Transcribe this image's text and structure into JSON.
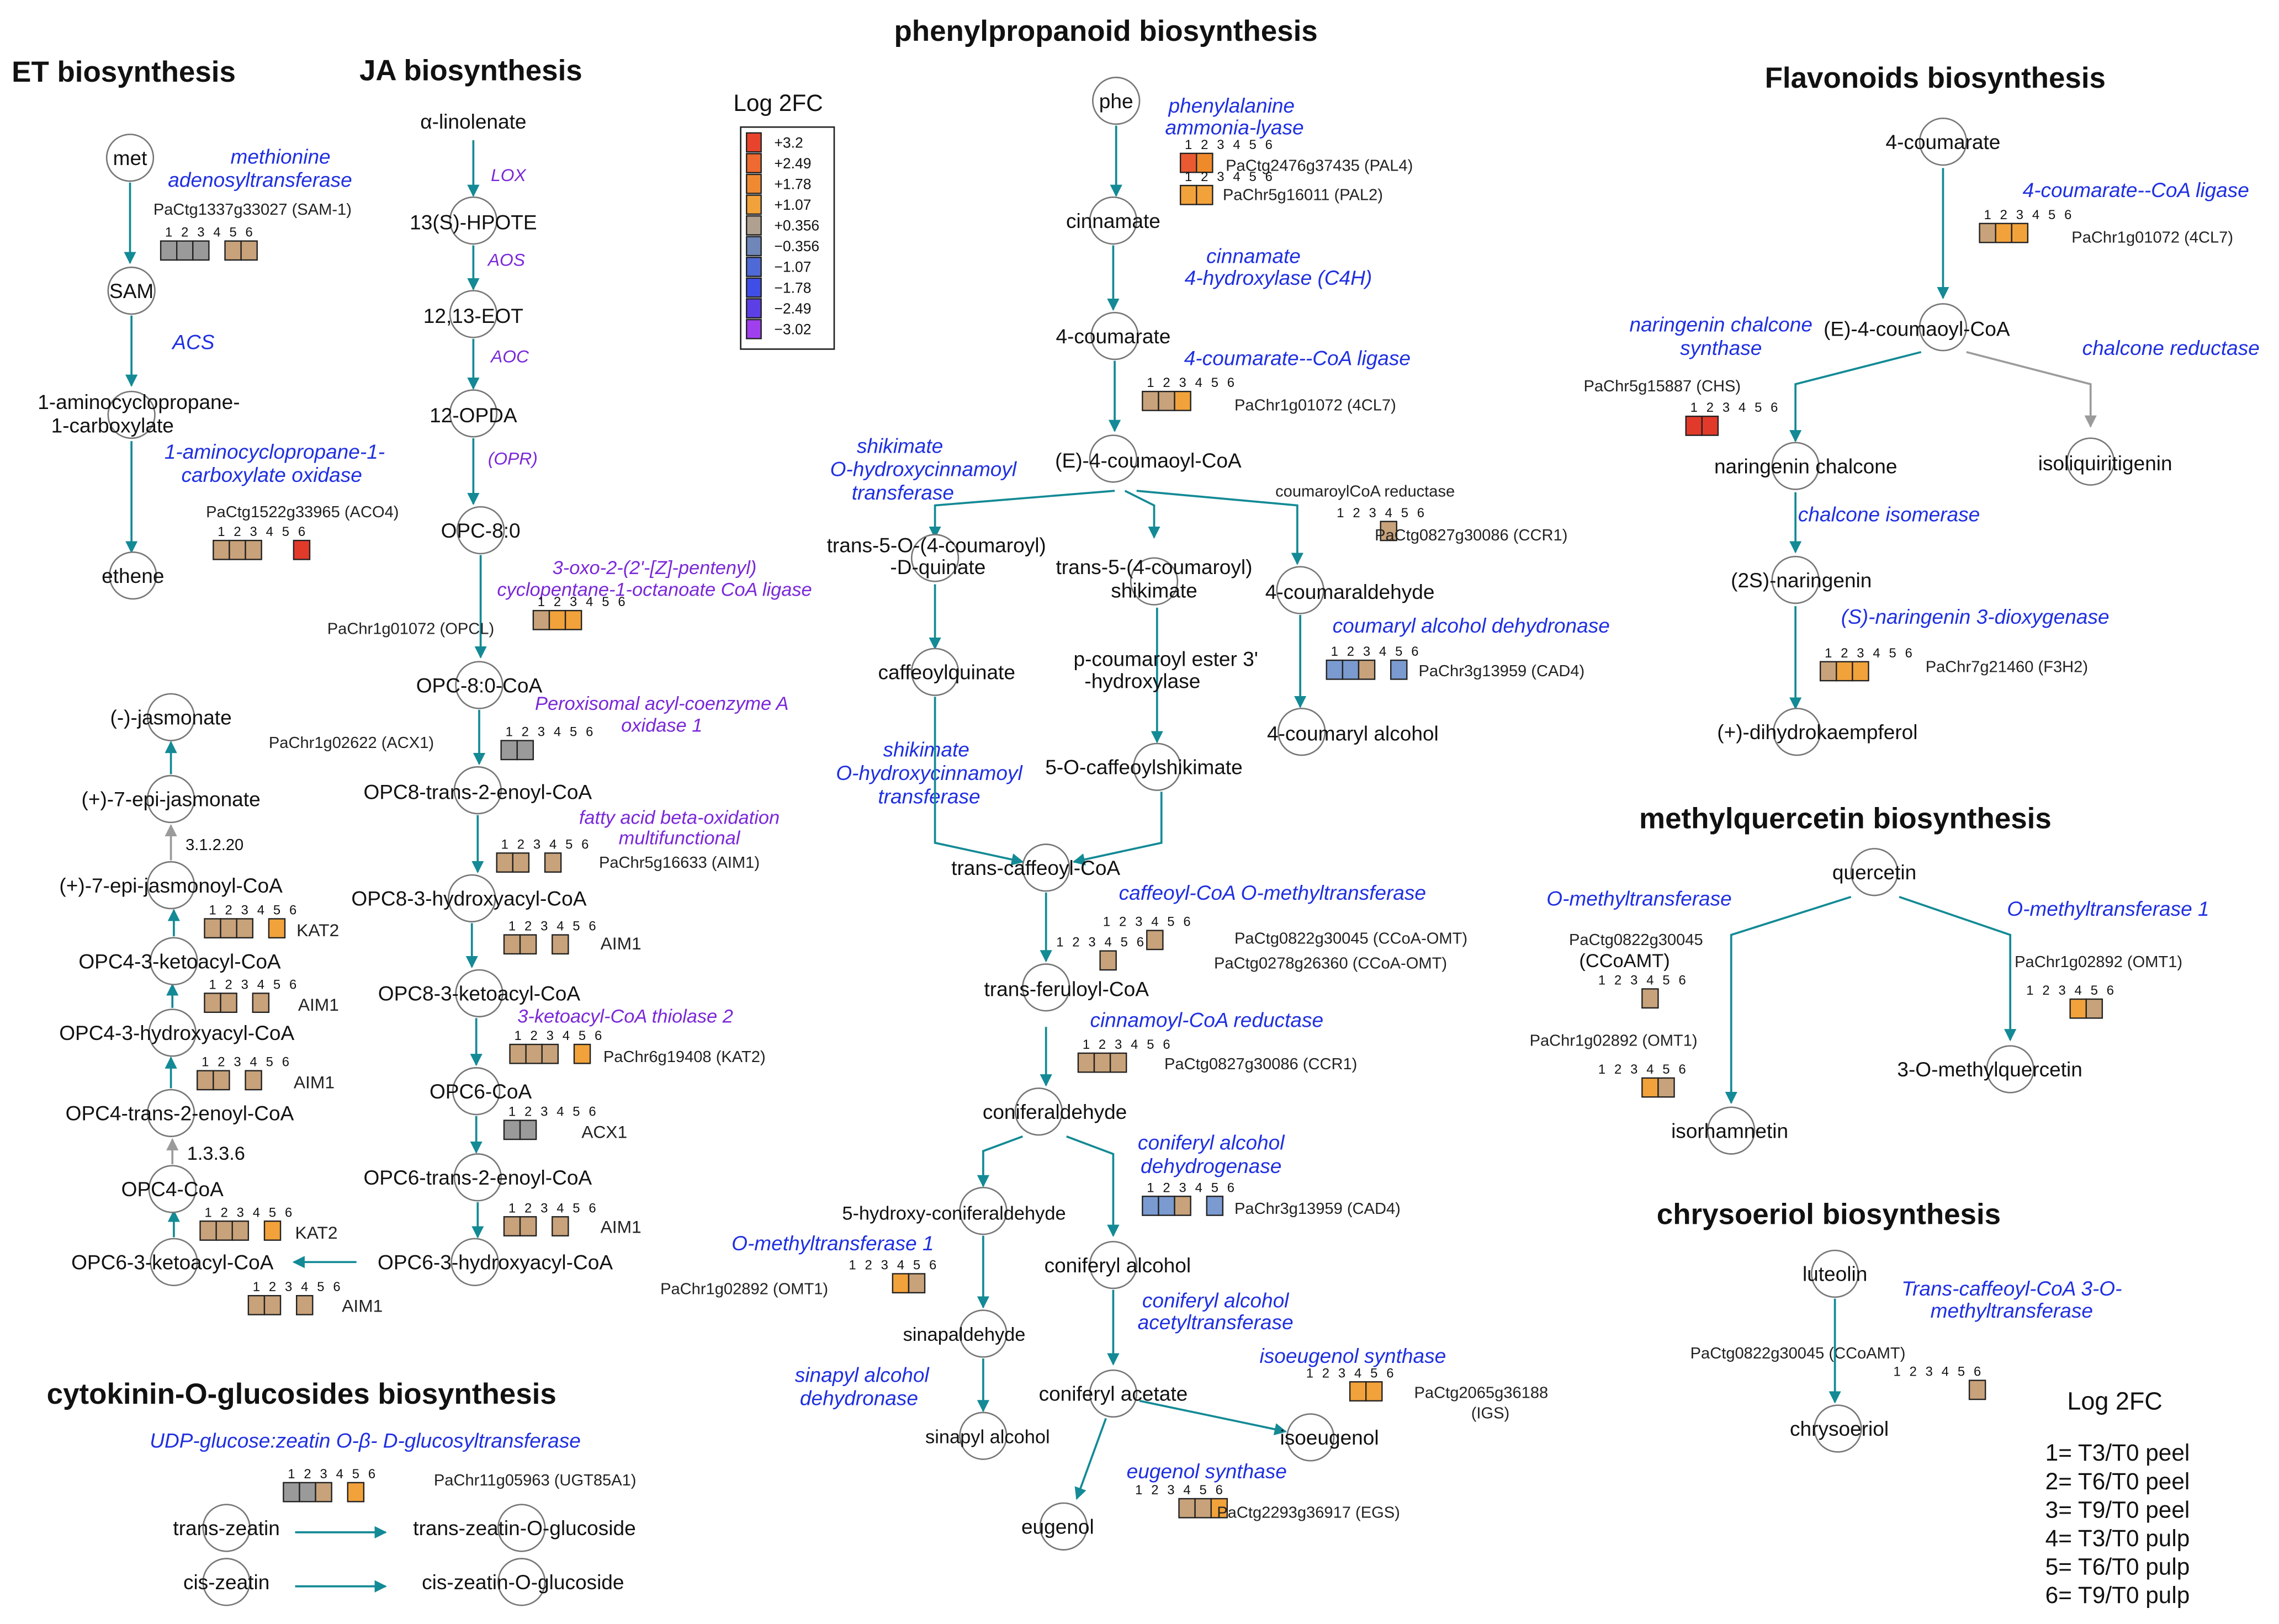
{
  "colors": {
    "arrow_teal": "#138a95",
    "arrow_gray": "#9b9b9b",
    "enzyme_blue": "#1f2fe0",
    "enzyme_purple": "#7a28d8",
    "tan": "#c8a27a",
    "gray": "#9a9a9a",
    "orange": "#f2a23a",
    "orange_dark": "#ef8a2b",
    "red_orange": "#ea5a32",
    "red": "#e23a2a",
    "blue": "#7a9ad0"
  },
  "sections": {
    "et": "ET biosynthesis",
    "ja": "JA biosynthesis",
    "phenyl": "phenylpropanoid biosynthesis",
    "flav": "Flavonoids biosynthesis",
    "mq": "methylquercetin biosynthesis",
    "chry": "chrysoeriol biosynthesis",
    "cyto": "cytokinin-O-glucosides biosynthesis"
  },
  "legend": {
    "title": "Log 2FC",
    "scale_values": [
      "+3.2",
      "+2.49",
      "+1.78",
      "+1.07",
      "+0.356",
      "−0.356",
      "−1.07",
      "−1.78",
      "−2.49",
      "−3.02"
    ],
    "scale_colors": [
      "#e8432c",
      "#ee6a30",
      "#f08a32",
      "#f2a23a",
      "#b0a090",
      "#6f86b8",
      "#4f6ad6",
      "#3f4ee6",
      "#5d3fe6",
      "#a03fee"
    ],
    "key_title": "Log 2FC",
    "key": [
      "1= T3/T0 peel",
      "2= T6/T0 peel",
      "3= T9/T0 peel",
      "4= T3/T0 pulp",
      "5= T6/T0 pulp",
      "6= T9/T0 pulp"
    ]
  },
  "numbers": {
    "n1": "1",
    "n2": "2",
    "n3": "3",
    "n4": "4",
    "n5": "5",
    "n6": "6"
  },
  "et": {
    "met": "met",
    "enz1_a": "methionine",
    "enz1_b": "adenosyltransferase",
    "gene1": "PaCtg1337g33027 (SAM-1)",
    "sam": "SAM",
    "acs": "ACS",
    "acc_a": "1-aminocyclopropane-",
    "acc_b": "1-carboxylate",
    "enz2_a": "1-aminocyclopropane-1-",
    "enz2_b": "carboxylate oxidase",
    "gene2": "PaCtg1522g33965 (ACO4)",
    "ethene": "ethene"
  },
  "ja": {
    "linolenate": "α-linolenate",
    "lox": "LOX",
    "hpote": "13(S)-HPOTE",
    "aos": "AOS",
    "eot": "12,13-EOT",
    "aoc": "AOC",
    "opda": "12-OPDA",
    "opr": "(OPR)",
    "opc80": "OPC-8:0",
    "enz_opcl_a": "3-oxo-2-(2'-[Z]-pentenyl)",
    "enz_opcl_b": "cyclopentane-1-octanoate CoA ligase",
    "gene_opcl": "PaChr1g01072 (OPCL)",
    "opc80coa": "OPC-8:0-CoA",
    "enz_acx_a": "Peroxisomal acyl-coenzyme A",
    "enz_acx_b": "oxidase 1",
    "gene_acx": "PaChr1g02622 (ACX1)",
    "opc8trans": "OPC8-trans-2-enoyl-CoA",
    "enz_aim_a": "fatty acid beta-oxidation",
    "enz_aim_b": "multifunctional",
    "gene_aim": "PaChr5g16633 (AIM1)",
    "opc8hydroxy": "OPC8-3-hydroxyacyl-CoA",
    "aim1": "AIM1",
    "opc8keto": "OPC8-3-ketoacyl-CoA",
    "enz_kat": "3-ketoacyl-CoA thiolase 2",
    "gene_kat": "PaChr6g19408 (KAT2)",
    "opc6coa": "OPC6-CoA",
    "acx1": "ACX1",
    "opc6trans": "OPC6-trans-2-enoyl-CoA",
    "opc6hydroxy": "OPC6-3-hydroxyacyl-CoA",
    "opc6keto": "OPC6-3-ketoacyl-CoA",
    "opc4coa": "OPC4-CoA",
    "ec1336": "1.3.3.6",
    "opc4trans": "OPC4-trans-2-enoyl-CoA",
    "opc4hydroxy": "OPC4-3-hydroxyacyl-CoA",
    "opc4keto": "OPC4-3-ketoacyl-CoA",
    "kat2": "KAT2",
    "epijasmonoyl": "(+)-7-epi-jasmonoyl-CoA",
    "ec3120": "3.1.2.20",
    "epijasmonate": "(+)-7-epi-jasmonate",
    "jasmonate": "(-)-jasmonate"
  },
  "phenyl": {
    "phe": "phe",
    "pal_a": "phenylalanine",
    "pal_b": "ammonia-lyase",
    "gene_pal4": "PaCtg2476g37435 (PAL4)",
    "gene_pal2": "PaChr5g16011 (PAL2)",
    "cinnamate": "cinnamate",
    "c4h_a": "cinnamate",
    "c4h_b": "4-hydroxylase (C4H)",
    "coumarate": "4-coumarate",
    "cl4": "4-coumarate--CoA ligase",
    "gene_4cl": "PaChr1g01072 (4CL7)",
    "coumaoylcoa": "(E)-4-coumaoyl-CoA",
    "shik_a": "shikimate",
    "shik_b": "O-hydroxycinnamoyl",
    "shik_c": "transferase",
    "ccr_label": "coumaroylCoA reductase",
    "gene_ccr1": "PaCtg0827g30086 (CCR1)",
    "quinate_a": "trans-5-O-(4-coumaroyl)",
    "quinate_b": "-D-quinate",
    "shikimate_a": "trans-5-(4-coumaroyl)",
    "shikimate_b": "shikimate",
    "coumaraldehyde": "4-coumaraldehyde",
    "cad_enz": "coumaryl alcohol dehydronase",
    "gene_cad4": "PaChr3g13959 (CAD4)",
    "caffeoylquinate": "caffeoylquinate",
    "pcoum_a": "p-coumaroyl ester 3'",
    "pcoum_b": "-hydroxylase",
    "coumarylalc": "4-coumaryl alcohol",
    "shik2_a": "shikimate",
    "shik2_b": "O-hydroxycinnamoyl",
    "shik2_c": "transferase",
    "caffeoylshik": "5-O-caffeoylshikimate",
    "transcaffeoyl": "trans-caffeoyl-CoA",
    "ccoaomt_enz": "caffeoyl-CoA O-methyltransferase",
    "gene_ccoaomt1": "PaCtg0822g30045 (CCoA-OMT)",
    "gene_ccoaomt2": "PaCtg0278g26360 (CCoA-OMT)",
    "transferuloyl": "trans-feruloyl-CoA",
    "ccr_enz": "cinnamoyl-CoA reductase",
    "gene_ccr1b": "PaCtg0827g30086 (CCR1)",
    "coniferaldehyde": "coniferaldehyde",
    "cad2_a": "coniferyl alcohol",
    "cad2_b": "dehydrogenase",
    "gene_cad4b": "PaChr3g13959 (CAD4)",
    "hydroxyconif": "5-hydroxy-coniferaldehyde",
    "omt_enz": "O-methyltransferase 1",
    "gene_omt1": "PaChr1g02892 (OMT1)",
    "coniferylalc": "coniferyl alcohol",
    "cfat_a": "coniferyl alcohol",
    "cfat_b": "acetyltransferase",
    "sinapaldehyde": "sinapaldehyde",
    "sad_a": "sinapyl alcohol",
    "sad_b": "dehydronase",
    "coniferylacetate": "coniferyl acetate",
    "igs_enz": "isoeugenol synthase",
    "gene_igs_a": "PaCtg2065g36188",
    "gene_igs_b": "(IGS)",
    "sinapylalc": "sinapyl alcohol",
    "isoeugenol": "isoeugenol",
    "egs_enz": "eugenol synthase",
    "gene_egs": "PaCtg2293g36917 (EGS)",
    "eugenol": "eugenol"
  },
  "flav": {
    "coumarate": "4-coumarate",
    "cl4": "4-coumarate--CoA ligase",
    "gene_4cl": "PaChr1g01072 (4CL7)",
    "chs_a": "naringenin chalcone",
    "chs_b": "synthase",
    "coumaoylcoa": "(E)-4-coumaoyl-CoA",
    "chr": "chalcone reductase",
    "gene_chs": "PaChr5g15887 (CHS)",
    "narchalcone": "naringenin chalcone",
    "isoliq": "isoliquiritigenin",
    "chi": "chalcone isomerase",
    "naringenin": "(2S)-naringenin",
    "f3h": "(S)-naringenin 3-dioxygenase",
    "gene_f3h": "PaChr7g21460 (F3H2)",
    "dihydro": "(+)-dihydrokaempferol"
  },
  "mq": {
    "quercetin": "quercetin",
    "omt_left": "O-methyltransferase",
    "omt_right": "O-methyltransferase 1",
    "gene_ccoamt_a": "PaCtg0822g30045",
    "gene_ccoamt_b": "(CCoAMT)",
    "gene_omt1_r": "PaChr1g02892 (OMT1)",
    "gene_omt1_l": "PaChr1g02892 (OMT1)",
    "methylq": "3-O-methylquercetin",
    "isorham": "isorhamnetin"
  },
  "chry": {
    "luteolin": "luteolin",
    "enz_a": "Trans-caffeoyl-CoA 3-O-",
    "enz_b": "methyltransferase",
    "gene": "PaCtg0822g30045 (CCoAMT)",
    "chrysoeriol": "chrysoeriol"
  },
  "cyto": {
    "ugt": "UDP-glucose:zeatin O-β- D-glucosyltransferase",
    "gene": "PaChr11g05963 (UGT85A1)",
    "transzeatin": "trans-zeatin",
    "transzeatinglu": "trans-zeatin-O-glucoside",
    "ciszeatin": "cis-zeatin",
    "ciszeatinglu": "cis-zeatin-O-glucoside"
  }
}
